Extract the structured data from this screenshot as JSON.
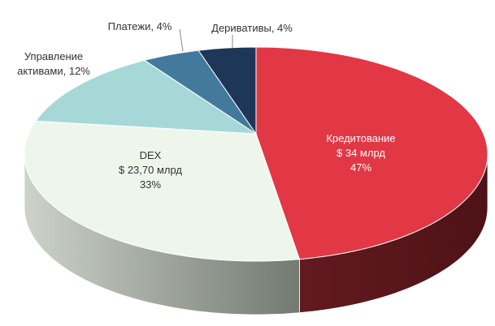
{
  "chart_data": {
    "type": "pie",
    "style": "3d",
    "title": "",
    "slices": [
      {
        "label": "Кредитование",
        "amount": "$ 34 млрд",
        "percent_text": "47%",
        "value": 47,
        "color": "#e23744",
        "side_color": "#5c161b",
        "text_color": "#ffffff"
      },
      {
        "label": "DEX",
        "amount": "$ 23,70 млрд",
        "percent_text": "33%",
        "value": 33,
        "color": "#eef6ec",
        "side_color": "#9aa098",
        "text_color": "#333333"
      },
      {
        "label": "Управление активами, 12%",
        "value": 12,
        "color": "#a6d8d8",
        "side_color": "#6e9a9a",
        "text_color": "#333333"
      },
      {
        "label": "Платежи, 4%",
        "value": 4,
        "color": "#437a9c",
        "side_color": "#2c5570",
        "text_color": "#333333"
      },
      {
        "label": "Деривативы, 4%",
        "value": 4,
        "color": "#1e3658",
        "side_color": "#122338",
        "text_color": "#333333"
      }
    ]
  }
}
